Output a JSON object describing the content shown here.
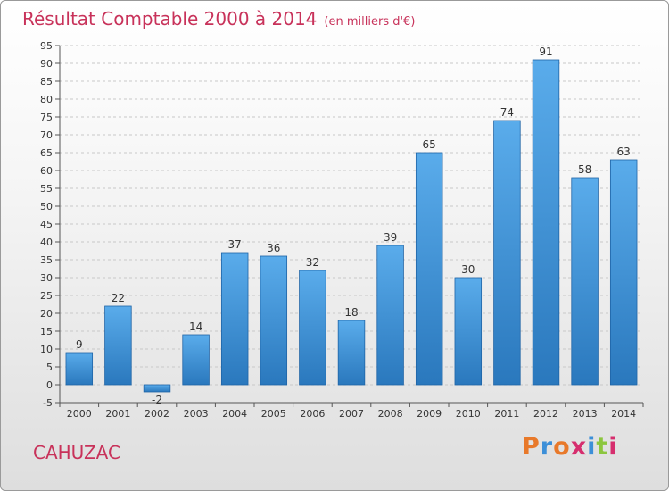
{
  "header": {
    "title": "Résultat Comptable 2000 à 2014",
    "subtitle": "(en milliers d'€)"
  },
  "footer": {
    "town": "CAHUZAC",
    "brand": {
      "letters": [
        "P",
        "r",
        "o",
        "x",
        "i",
        "t",
        "i"
      ],
      "colors": [
        "#e8792a",
        "#3c8fd8",
        "#e8792a",
        "#d62e6e",
        "#3c8fd8",
        "#8cc63f",
        "#d62e6e"
      ]
    }
  },
  "chart_data": {
    "type": "bar",
    "title": "Résultat Comptable 2000 à 2014",
    "subtitle": "(en milliers d'€)",
    "xlabel": "",
    "ylabel": "",
    "categories": [
      "2000",
      "2001",
      "2002",
      "2003",
      "2004",
      "2005",
      "2006",
      "2007",
      "2008",
      "2009",
      "2010",
      "2011",
      "2012",
      "2013",
      "2014"
    ],
    "values": [
      9,
      22,
      -2,
      14,
      37,
      36,
      32,
      18,
      39,
      65,
      30,
      74,
      91,
      58,
      63
    ],
    "data_labels": [
      "9",
      "22",
      "-2",
      "14",
      "37",
      "36",
      "32",
      "18",
      "39",
      "65",
      "30",
      "74",
      "91",
      "58",
      "63"
    ],
    "ylim": [
      -5,
      95
    ],
    "yticks": [
      -5,
      0,
      5,
      10,
      15,
      20,
      25,
      30,
      35,
      40,
      45,
      50,
      55,
      60,
      65,
      70,
      75,
      80,
      85,
      90,
      95
    ],
    "grid": true,
    "legend": "none",
    "colors": {
      "bar_top": "#5aaceb",
      "bar_bottom": "#2a78bd",
      "bar_edge": "#1f64a6",
      "grid": "#c8c8c8",
      "axis": "#555555"
    }
  }
}
